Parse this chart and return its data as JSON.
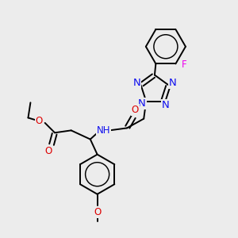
{
  "background_color": "#ececec",
  "figsize": [
    3.0,
    3.0
  ],
  "dpi": 100,
  "atom_colors": {
    "C": "#000000",
    "N": "#1010ee",
    "O": "#dd0000",
    "F": "#ee00ee",
    "H": "#008080"
  },
  "bond_color": "#000000",
  "bond_width": 1.4,
  "font_size": 8.5
}
